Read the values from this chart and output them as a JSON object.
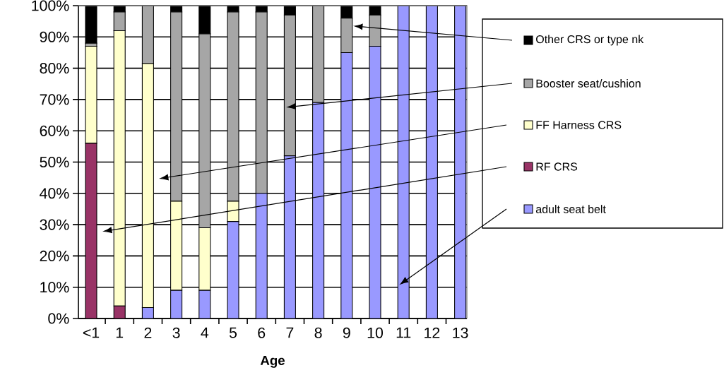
{
  "chart_data": {
    "type": "bar",
    "stacked": true,
    "xlabel": "Age",
    "categories": [
      "<1",
      "1",
      "2",
      "3",
      "4",
      "5",
      "6",
      "7",
      "8",
      "9",
      "10",
      "11",
      "12",
      "13"
    ],
    "series": [
      {
        "name": "adult seat belt",
        "color": "#9999ff",
        "values": [
          0,
          0,
          3.5,
          9,
          9,
          31,
          40,
          52,
          69,
          85,
          87,
          100,
          100,
          100
        ]
      },
      {
        "name": "RF CRS",
        "color": "#993366",
        "values": [
          56,
          4,
          0,
          0,
          0,
          0,
          0,
          0,
          0,
          0,
          0,
          0,
          0,
          0
        ]
      },
      {
        "name": "FF Harness CRS",
        "color": "#ffffcc",
        "values": [
          31,
          88,
          78,
          28.5,
          20,
          6.5,
          0,
          0,
          0,
          0,
          0,
          0,
          0,
          0
        ]
      },
      {
        "name": "Booster seat/cushion",
        "color": "#a6a6a6",
        "values": [
          1,
          6,
          18.5,
          60.5,
          62,
          60.5,
          58,
          45,
          31,
          11,
          10,
          0,
          0,
          0
        ]
      },
      {
        "name": "Other CRS or type nk",
        "color": "#000000",
        "values": [
          12,
          2,
          0,
          2,
          9,
          2,
          2,
          3,
          0,
          4,
          3,
          0,
          0,
          0
        ]
      }
    ],
    "ylim": [
      0,
      100
    ],
    "yticks": [
      {
        "value": 0,
        "label": "0%"
      },
      {
        "value": 10,
        "label": "10%"
      },
      {
        "value": 20,
        "label": "20%"
      },
      {
        "value": 30,
        "label": "30%"
      },
      {
        "value": 40,
        "label": "40%"
      },
      {
        "value": 50,
        "label": "50%"
      },
      {
        "value": 60,
        "label": "60%"
      },
      {
        "value": 70,
        "label": "70%"
      },
      {
        "value": 80,
        "label": "80%"
      },
      {
        "value": 90,
        "label": "90%"
      },
      {
        "value": 100,
        "label": "100%"
      }
    ],
    "grid": "y",
    "legend": "right"
  }
}
